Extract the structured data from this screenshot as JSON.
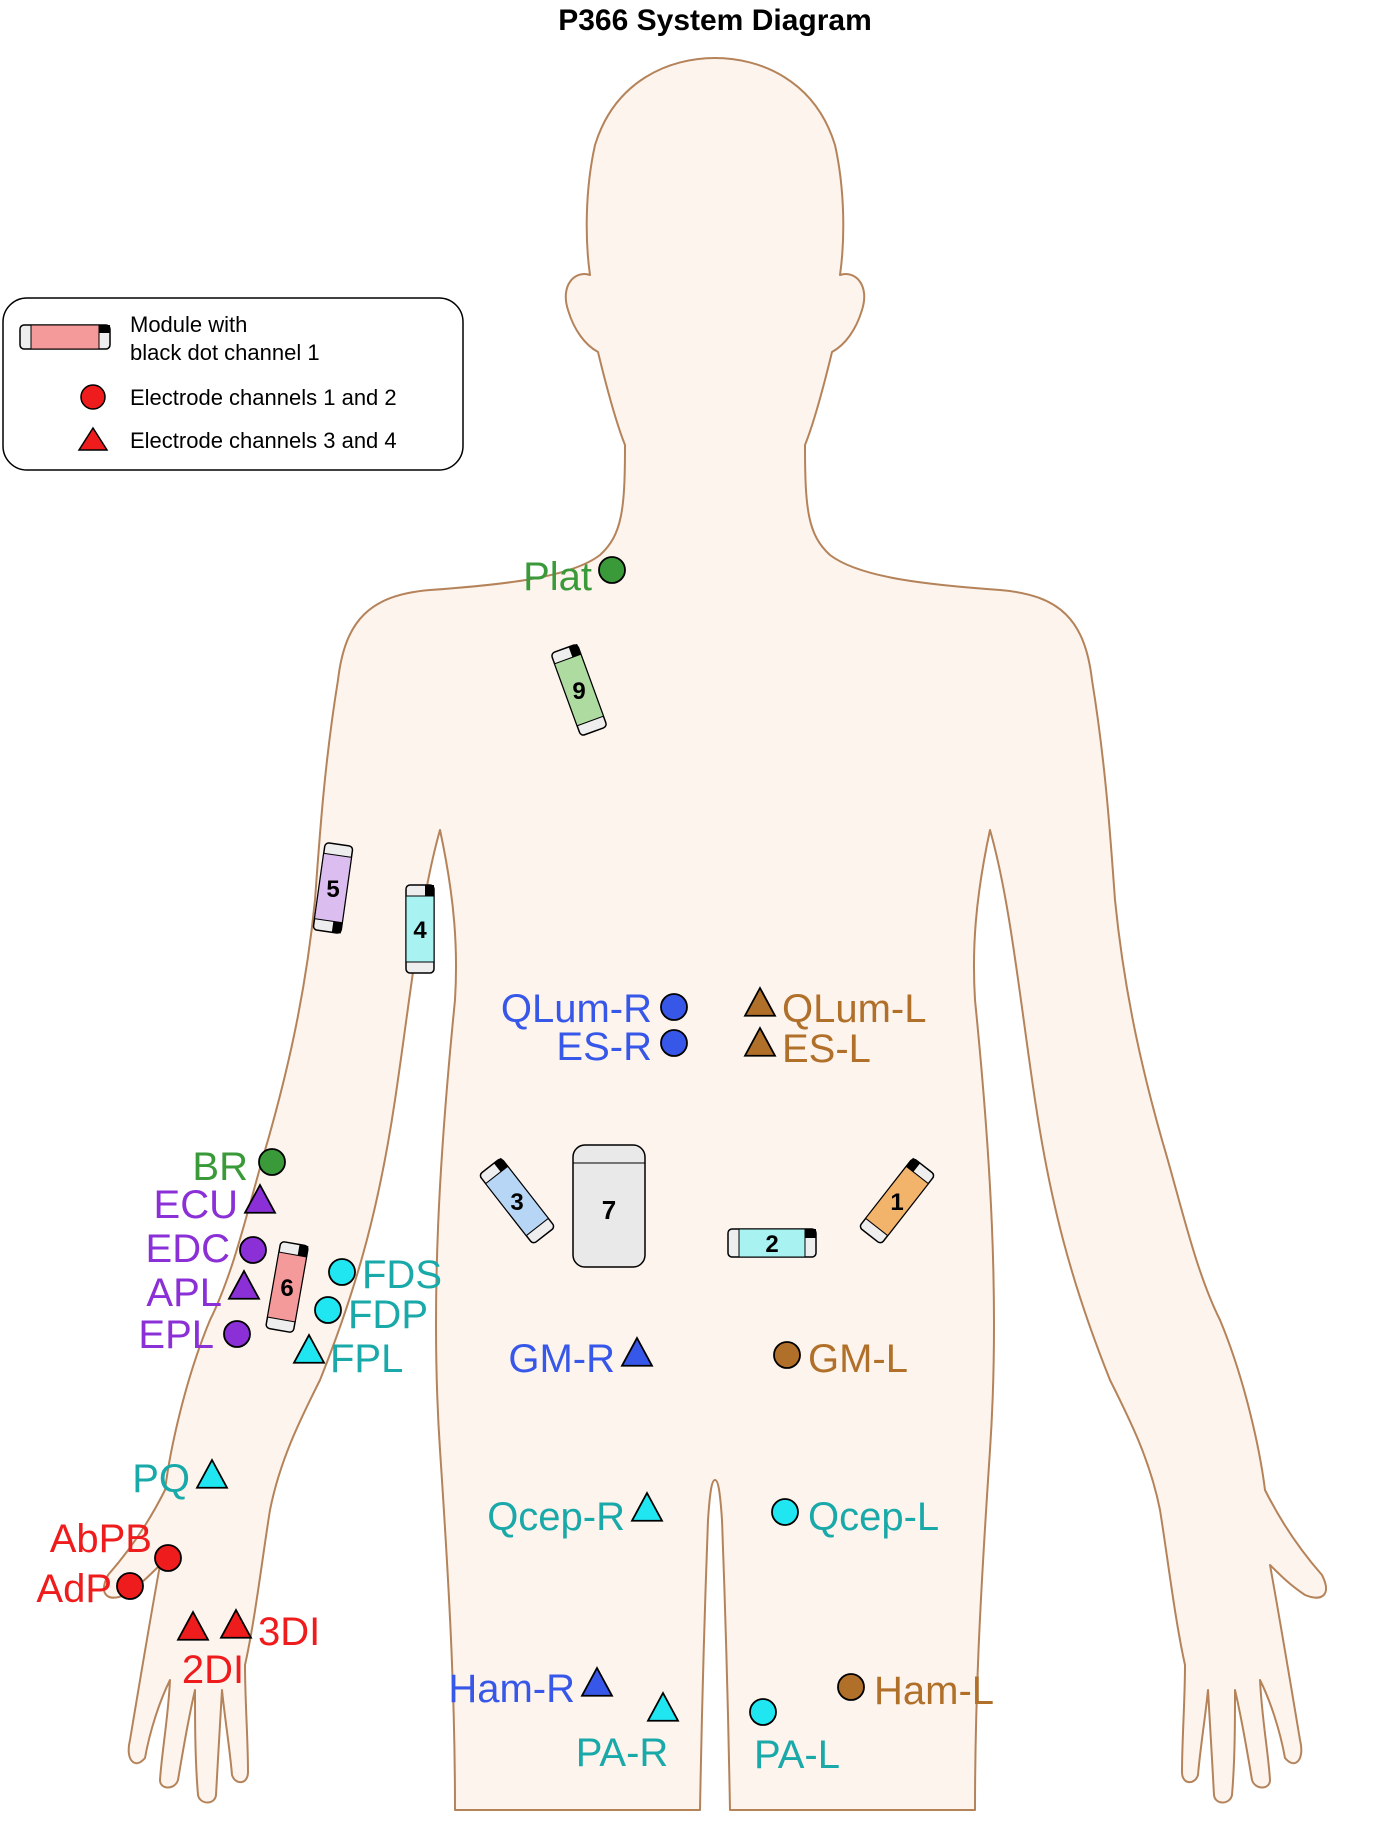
{
  "title": "P366 System Diagram",
  "legend": {
    "module_line1": "Module with",
    "module_line2": "black dot channel 1",
    "circle_label": "Electrode channels 1 and 2",
    "triangle_label": "Electrode channels 3 and 4"
  },
  "colors": {
    "body_fill": "#fdf4ee",
    "body_stroke": "#b5835a",
    "green": "#3a9a3a",
    "purple": "#8a30d6",
    "teal": "#1aa9a9",
    "cyan_marker": "#1fe6f0",
    "blue": "#3757e8",
    "brown": "#b0702a",
    "red": "#ee1c1c"
  },
  "modules": [
    {
      "label": "1",
      "color": "#f2b36b"
    },
    {
      "label": "2",
      "color": "#a9f2f2"
    },
    {
      "label": "3",
      "color": "#b7d6f5"
    },
    {
      "label": "4",
      "color": "#a9f2f2"
    },
    {
      "label": "5",
      "color": "#dcbdf0"
    },
    {
      "label": "6",
      "color": "#f59a9a"
    },
    {
      "label": "7",
      "color": "#e9e9e9"
    },
    {
      "label": "9",
      "color": "#addba0"
    }
  ],
  "electrodes": [
    {
      "name": "Plat",
      "shape": "circle",
      "color": "green"
    },
    {
      "name": "BR",
      "shape": "circle",
      "color": "green"
    },
    {
      "name": "ECU",
      "shape": "triangle",
      "color": "purple"
    },
    {
      "name": "EDC",
      "shape": "circle",
      "color": "purple"
    },
    {
      "name": "APL",
      "shape": "triangle",
      "color": "purple"
    },
    {
      "name": "EPL",
      "shape": "circle",
      "color": "purple"
    },
    {
      "name": "FDS",
      "shape": "circle",
      "color": "teal"
    },
    {
      "name": "FDP",
      "shape": "circle",
      "color": "teal"
    },
    {
      "name": "FPL",
      "shape": "triangle",
      "color": "teal"
    },
    {
      "name": "PQ",
      "shape": "triangle",
      "color": "teal"
    },
    {
      "name": "AbPB",
      "shape": "circle",
      "color": "red"
    },
    {
      "name": "AdP",
      "shape": "circle",
      "color": "red"
    },
    {
      "name": "2DI",
      "shape": "triangle",
      "color": "red"
    },
    {
      "name": "3DI",
      "shape": "triangle",
      "color": "red"
    },
    {
      "name": "QLum-R",
      "shape": "circle",
      "color": "blue"
    },
    {
      "name": "ES-R",
      "shape": "circle",
      "color": "blue"
    },
    {
      "name": "QLum-L",
      "shape": "triangle",
      "color": "brown"
    },
    {
      "name": "ES-L",
      "shape": "triangle",
      "color": "brown"
    },
    {
      "name": "GM-R",
      "shape": "triangle",
      "color": "blue"
    },
    {
      "name": "GM-L",
      "shape": "circle",
      "color": "brown"
    },
    {
      "name": "Qcep-R",
      "shape": "triangle",
      "color": "teal"
    },
    {
      "name": "Qcep-L",
      "shape": "circle",
      "color": "teal"
    },
    {
      "name": "Ham-R",
      "shape": "triangle",
      "color": "blue"
    },
    {
      "name": "Ham-L",
      "shape": "circle",
      "color": "brown"
    },
    {
      "name": "PA-R",
      "shape": "triangle",
      "color": "teal"
    },
    {
      "name": "PA-L",
      "shape": "circle",
      "color": "teal"
    }
  ]
}
